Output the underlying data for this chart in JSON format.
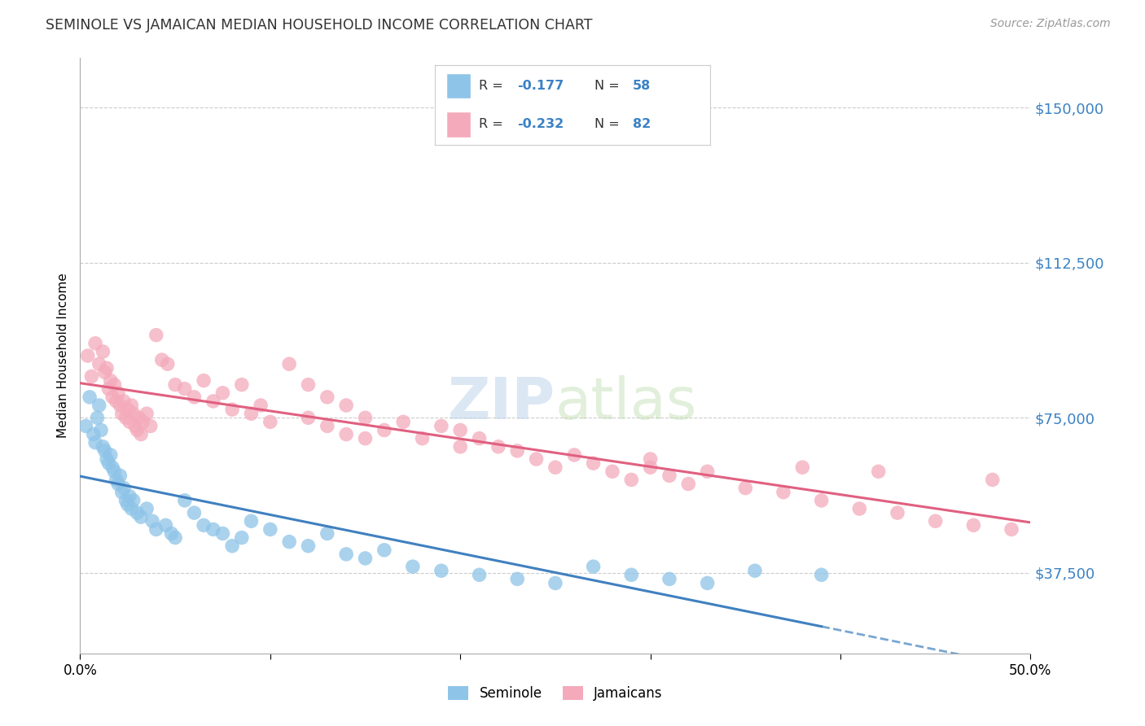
{
  "title": "SEMINOLE VS JAMAICAN MEDIAN HOUSEHOLD INCOME CORRELATION CHART",
  "source": "Source: ZipAtlas.com",
  "ylabel": "Median Household Income",
  "xlim": [
    0.0,
    0.5
  ],
  "ylim": [
    18000,
    162000
  ],
  "yticks": [
    37500,
    75000,
    112500,
    150000
  ],
  "ytick_labels": [
    "$37,500",
    "$75,000",
    "$112,500",
    "$150,000"
  ],
  "seminole_color": "#8EC4E8",
  "jamaican_color": "#F4AABB",
  "seminole_line_color": "#4080C0",
  "jamaican_line_color": "#E06080",
  "background_color": "#FFFFFF",
  "grid_color": "#CCCCCC",
  "seminole_x": [
    0.003,
    0.005,
    0.007,
    0.008,
    0.009,
    0.01,
    0.011,
    0.012,
    0.013,
    0.014,
    0.015,
    0.016,
    0.017,
    0.018,
    0.019,
    0.02,
    0.021,
    0.022,
    0.023,
    0.024,
    0.025,
    0.026,
    0.027,
    0.028,
    0.03,
    0.032,
    0.035,
    0.038,
    0.04,
    0.045,
    0.048,
    0.05,
    0.055,
    0.06,
    0.065,
    0.07,
    0.075,
    0.08,
    0.085,
    0.09,
    0.1,
    0.11,
    0.12,
    0.13,
    0.14,
    0.15,
    0.16,
    0.175,
    0.19,
    0.21,
    0.23,
    0.25,
    0.27,
    0.29,
    0.31,
    0.33,
    0.355,
    0.39
  ],
  "seminole_y": [
    73000,
    80000,
    71000,
    69000,
    75000,
    78000,
    72000,
    68000,
    67000,
    65000,
    64000,
    66000,
    63000,
    62000,
    60000,
    59000,
    61000,
    57000,
    58000,
    55000,
    54000,
    56000,
    53000,
    55000,
    52000,
    51000,
    53000,
    50000,
    48000,
    49000,
    47000,
    46000,
    55000,
    52000,
    49000,
    48000,
    47000,
    44000,
    46000,
    50000,
    48000,
    45000,
    44000,
    47000,
    42000,
    41000,
    43000,
    39000,
    38000,
    37000,
    36000,
    35000,
    39000,
    37000,
    36000,
    35000,
    38000,
    37000
  ],
  "jamaican_x": [
    0.004,
    0.006,
    0.008,
    0.01,
    0.012,
    0.013,
    0.014,
    0.015,
    0.016,
    0.017,
    0.018,
    0.019,
    0.02,
    0.021,
    0.022,
    0.023,
    0.024,
    0.025,
    0.026,
    0.027,
    0.028,
    0.029,
    0.03,
    0.031,
    0.032,
    0.033,
    0.035,
    0.037,
    0.04,
    0.043,
    0.046,
    0.05,
    0.055,
    0.06,
    0.065,
    0.07,
    0.075,
    0.08,
    0.085,
    0.09,
    0.095,
    0.1,
    0.11,
    0.12,
    0.13,
    0.14,
    0.15,
    0.16,
    0.17,
    0.18,
    0.19,
    0.2,
    0.21,
    0.22,
    0.23,
    0.24,
    0.25,
    0.26,
    0.27,
    0.28,
    0.29,
    0.3,
    0.31,
    0.32,
    0.33,
    0.35,
    0.37,
    0.39,
    0.41,
    0.43,
    0.45,
    0.47,
    0.49,
    0.12,
    0.13,
    0.14,
    0.15,
    0.2,
    0.3,
    0.38,
    0.42,
    0.48
  ],
  "jamaican_y": [
    90000,
    85000,
    93000,
    88000,
    91000,
    86000,
    87000,
    82000,
    84000,
    80000,
    83000,
    79000,
    81000,
    78000,
    76000,
    79000,
    75000,
    77000,
    74000,
    78000,
    76000,
    73000,
    72000,
    75000,
    71000,
    74000,
    76000,
    73000,
    95000,
    89000,
    88000,
    83000,
    82000,
    80000,
    84000,
    79000,
    81000,
    77000,
    83000,
    76000,
    78000,
    74000,
    88000,
    83000,
    80000,
    78000,
    75000,
    72000,
    74000,
    70000,
    73000,
    72000,
    70000,
    68000,
    67000,
    65000,
    63000,
    66000,
    64000,
    62000,
    60000,
    63000,
    61000,
    59000,
    62000,
    58000,
    57000,
    55000,
    53000,
    52000,
    50000,
    49000,
    48000,
    75000,
    73000,
    71000,
    70000,
    68000,
    65000,
    63000,
    62000,
    60000
  ]
}
